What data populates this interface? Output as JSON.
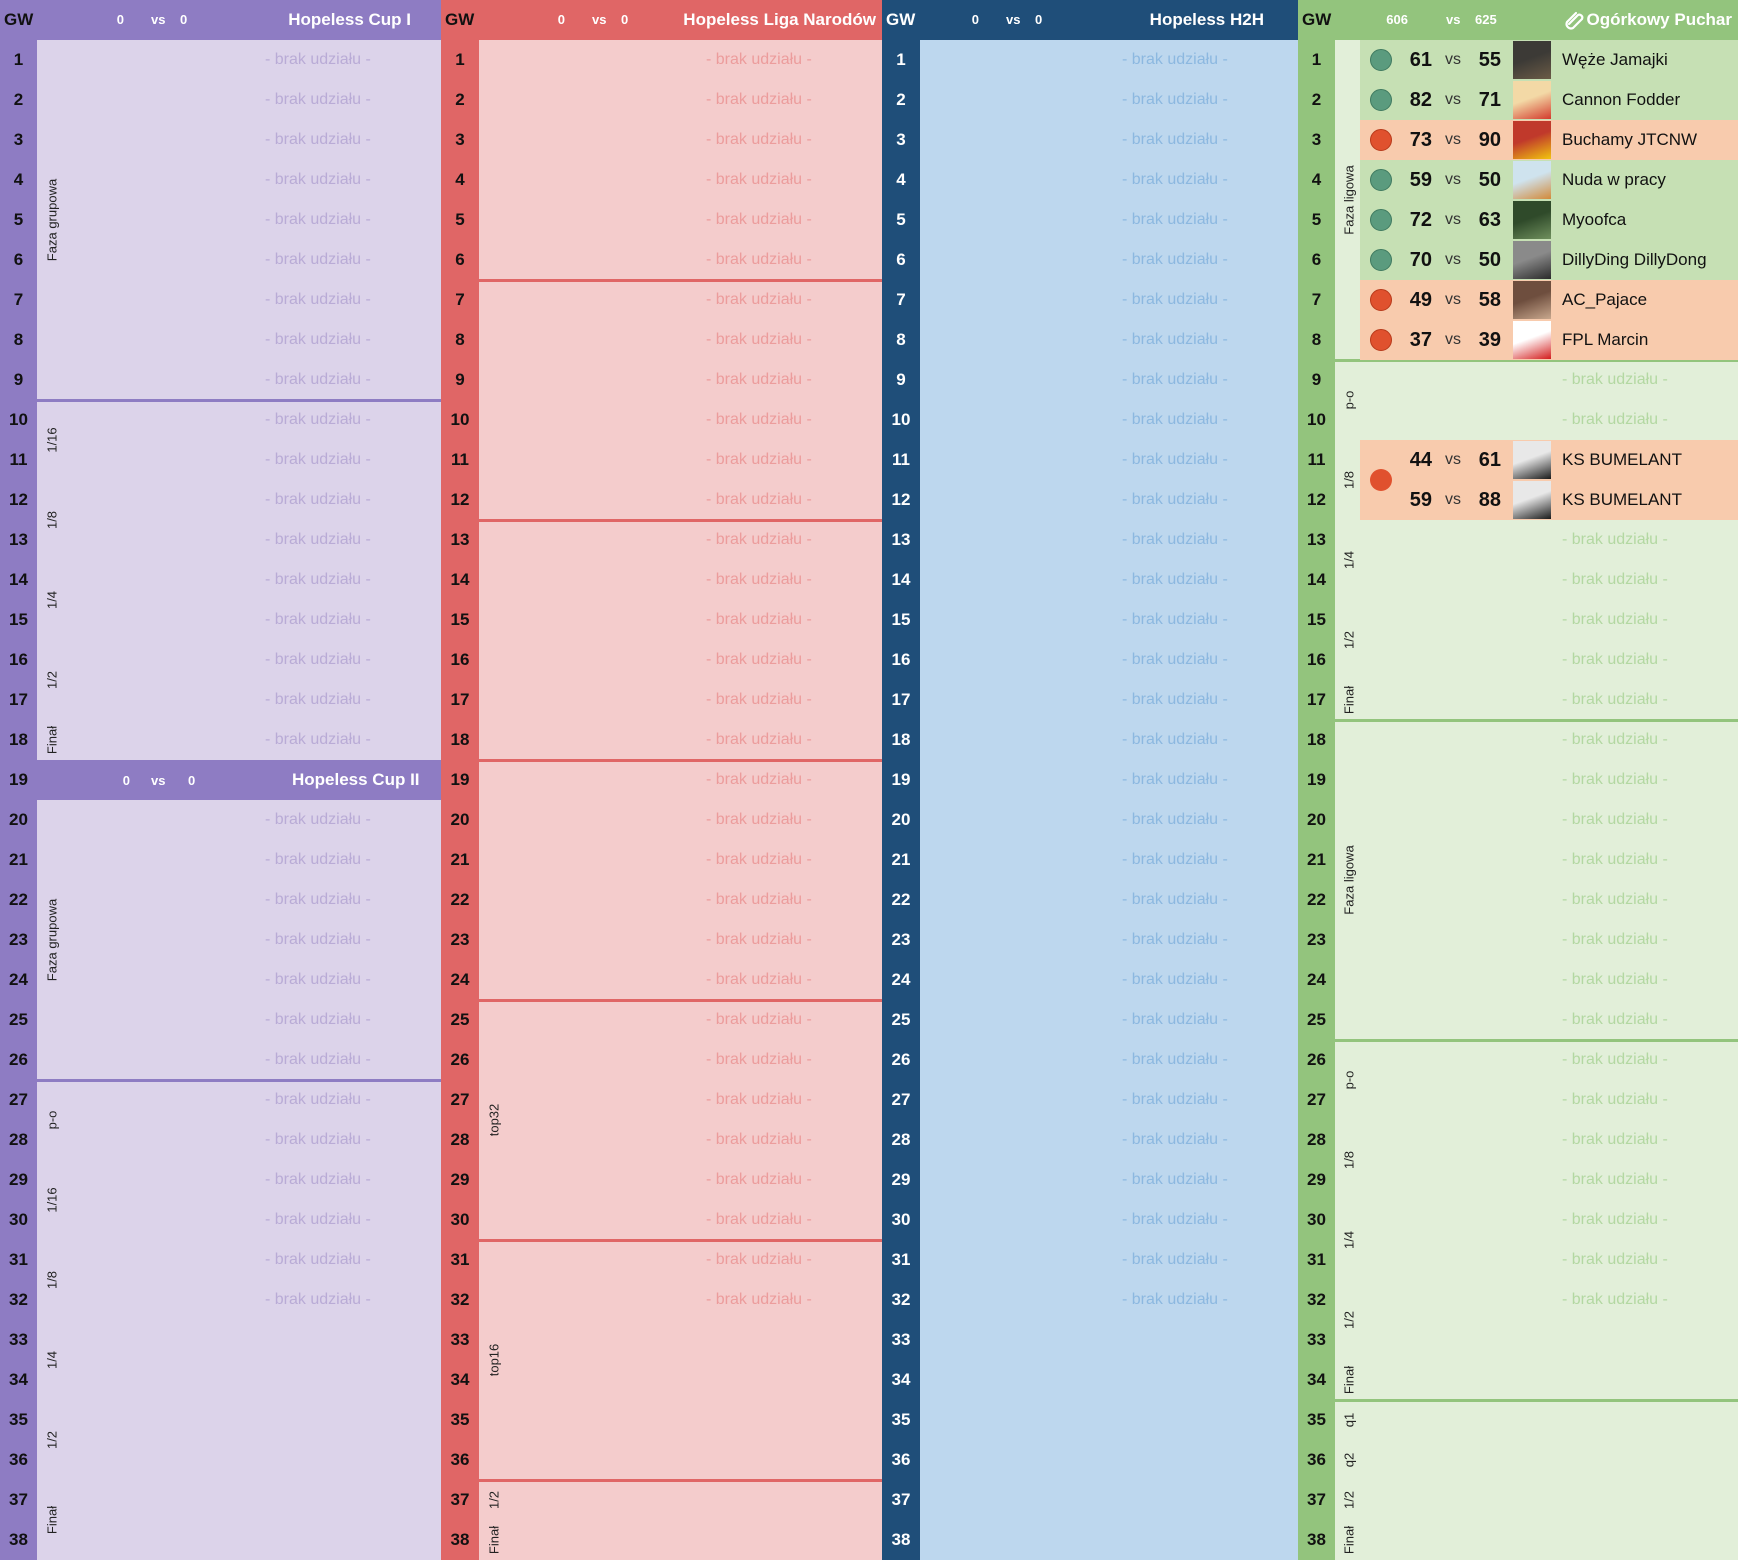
{
  "sections": [
    {
      "title": "Hopeless Cup I",
      "score_left": "0",
      "vs": "vs",
      "score_right": "0"
    },
    {
      "title": "Hopeless Liga Narodów",
      "score_left": "0",
      "vs": "vs",
      "score_right": "0"
    },
    {
      "title": "Hopeless H2H",
      "score_left": "0",
      "vs": "vs",
      "score_right": "0"
    },
    {
      "title": "Ogórkowy Puchar",
      "score_left": "606",
      "vs": "vs",
      "score_right": "625"
    }
  ],
  "cup2": {
    "title": "Hopeless Cup II",
    "score_left": "0",
    "vs": "vs",
    "score_right": "0"
  },
  "gw_label": "GW",
  "gameweeks": [
    "1",
    "2",
    "3",
    "4",
    "5",
    "6",
    "7",
    "8",
    "9",
    "10",
    "11",
    "12",
    "13",
    "14",
    "15",
    "16",
    "17",
    "18",
    "19",
    "20",
    "21",
    "22",
    "23",
    "24",
    "25",
    "26",
    "27",
    "28",
    "29",
    "30",
    "31",
    "32",
    "33",
    "34",
    "35",
    "36",
    "37",
    "38"
  ],
  "no_entry": "- brak udziału -",
  "stages": {
    "cup": [
      {
        "label": "Faza grupowa"
      },
      {
        "label": "1/16"
      },
      {
        "label": "1/8"
      },
      {
        "label": "1/4"
      },
      {
        "label": "1/2"
      },
      {
        "label": "Finał"
      },
      {
        "label": "Faza grupowa"
      },
      {
        "label": "p-o"
      },
      {
        "label": "1/16"
      },
      {
        "label": "1/8"
      },
      {
        "label": "1/4"
      },
      {
        "label": "1/2"
      },
      {
        "label": "Finał"
      }
    ],
    "liga": [
      {
        "label": "top32"
      },
      {
        "label": "top16"
      },
      {
        "label": "1/2"
      },
      {
        "label": "Finał"
      }
    ],
    "ogorkowy": [
      {
        "label": "Faza ligowa"
      },
      {
        "label": "p-o"
      },
      {
        "label": "1/8"
      },
      {
        "label": "1/4"
      },
      {
        "label": "1/2"
      },
      {
        "label": "Finał"
      },
      {
        "label": "Faza ligowa"
      },
      {
        "label": "p-o"
      },
      {
        "label": "1/8"
      },
      {
        "label": "1/4"
      },
      {
        "label": "1/2"
      },
      {
        "label": "Finał"
      },
      {
        "label": "q1"
      },
      {
        "label": "q2"
      },
      {
        "label": "1/2"
      },
      {
        "label": "Finał"
      }
    ]
  },
  "ogorkowy_results": [
    {
      "gw": "1",
      "my": "61",
      "vs": "vs",
      "their": "55",
      "opponent": "Węże Jamajki",
      "outcome": "win",
      "avatar": "avatar-1"
    },
    {
      "gw": "2",
      "my": "82",
      "vs": "vs",
      "their": "71",
      "opponent": "Cannon Fodder",
      "outcome": "win",
      "avatar": "avatar-2"
    },
    {
      "gw": "3",
      "my": "73",
      "vs": "vs",
      "their": "90",
      "opponent": "Buchamy JTCNW",
      "outcome": "loss",
      "avatar": "avatar-3"
    },
    {
      "gw": "4",
      "my": "59",
      "vs": "vs",
      "their": "50",
      "opponent": "Nuda w pracy",
      "outcome": "win",
      "avatar": "avatar-4"
    },
    {
      "gw": "5",
      "my": "72",
      "vs": "vs",
      "their": "63",
      "opponent": "Myoofca",
      "outcome": "win",
      "avatar": "avatar-5"
    },
    {
      "gw": "6",
      "my": "70",
      "vs": "vs",
      "their": "50",
      "opponent": "DillyDing DillyDong",
      "outcome": "win",
      "avatar": "avatar-6"
    },
    {
      "gw": "7",
      "my": "49",
      "vs": "vs",
      "their": "58",
      "opponent": "AC_Pajace",
      "outcome": "loss",
      "avatar": "avatar-7"
    },
    {
      "gw": "8",
      "my": "37",
      "vs": "vs",
      "their": "39",
      "opponent": "FPL Marcin",
      "outcome": "loss",
      "avatar": "avatar-8"
    },
    {
      "gw": "11",
      "my": "44",
      "vs": "vs",
      "their": "61",
      "opponent": "KS BUMELANT",
      "outcome": "loss",
      "avatar": "avatar-9"
    },
    {
      "gw": "12",
      "my": "59",
      "vs": "vs",
      "their": "88",
      "opponent": "KS BUMELANT",
      "outcome": "loss",
      "avatar": "avatar-9"
    }
  ],
  "colors": {
    "cup_header": "#8e7cc3",
    "cup_body": "#dcd3ea",
    "cup_brak": "#b9abd6",
    "liga_header": "#e06666",
    "liga_body": "#f4cccc",
    "liga_brak": "#ec9c9c",
    "h2h_header": "#1f4e79",
    "h2h_body": "#bdd7ee",
    "h2h_brak": "#8cb8e0",
    "ogo_header": "#93c47d",
    "ogo_body": "#e2efd9",
    "ogo_brak": "#b3d8a2",
    "win_row": "#c6e0b4",
    "loss_row": "#f8cbad",
    "win_dot": "#5b9b7e",
    "loss_dot": "#e0512e"
  }
}
